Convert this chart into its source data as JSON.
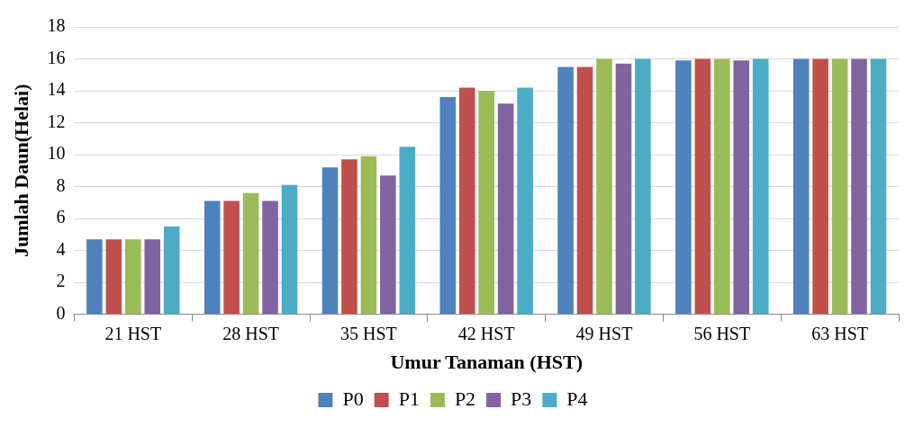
{
  "chart_data": {
    "type": "bar",
    "xlabel": "Umur Tanaman (HST)",
    "ylabel": "Jumlah Daun(Helai)",
    "categories": [
      "21 HST",
      "28 HST",
      "35 HST",
      "42 HST",
      "49 HST",
      "56 HST",
      "63 HST"
    ],
    "series": [
      {
        "name": "P0",
        "color": "#4f81bd",
        "values": [
          4.7,
          7.1,
          9.2,
          13.6,
          15.5,
          15.9,
          16
        ]
      },
      {
        "name": "P1",
        "color": "#c0504d",
        "values": [
          4.7,
          7.1,
          9.7,
          14.2,
          15.5,
          16,
          16
        ]
      },
      {
        "name": "P2",
        "color": "#9bbb59",
        "values": [
          4.7,
          7.6,
          9.9,
          14,
          16,
          16,
          16
        ]
      },
      {
        "name": "P3",
        "color": "#8064a2",
        "values": [
          4.7,
          7.1,
          8.7,
          13.2,
          15.7,
          15.9,
          16
        ]
      },
      {
        "name": "P4",
        "color": "#4bacc6",
        "values": [
          5.5,
          8.1,
          10.5,
          14.2,
          16,
          16,
          16
        ]
      }
    ],
    "ylim": [
      0,
      18
    ],
    "yticks": [
      0,
      2,
      4,
      6,
      8,
      10,
      12,
      14,
      16,
      18
    ],
    "grid": "y",
    "legend": "bottom"
  }
}
